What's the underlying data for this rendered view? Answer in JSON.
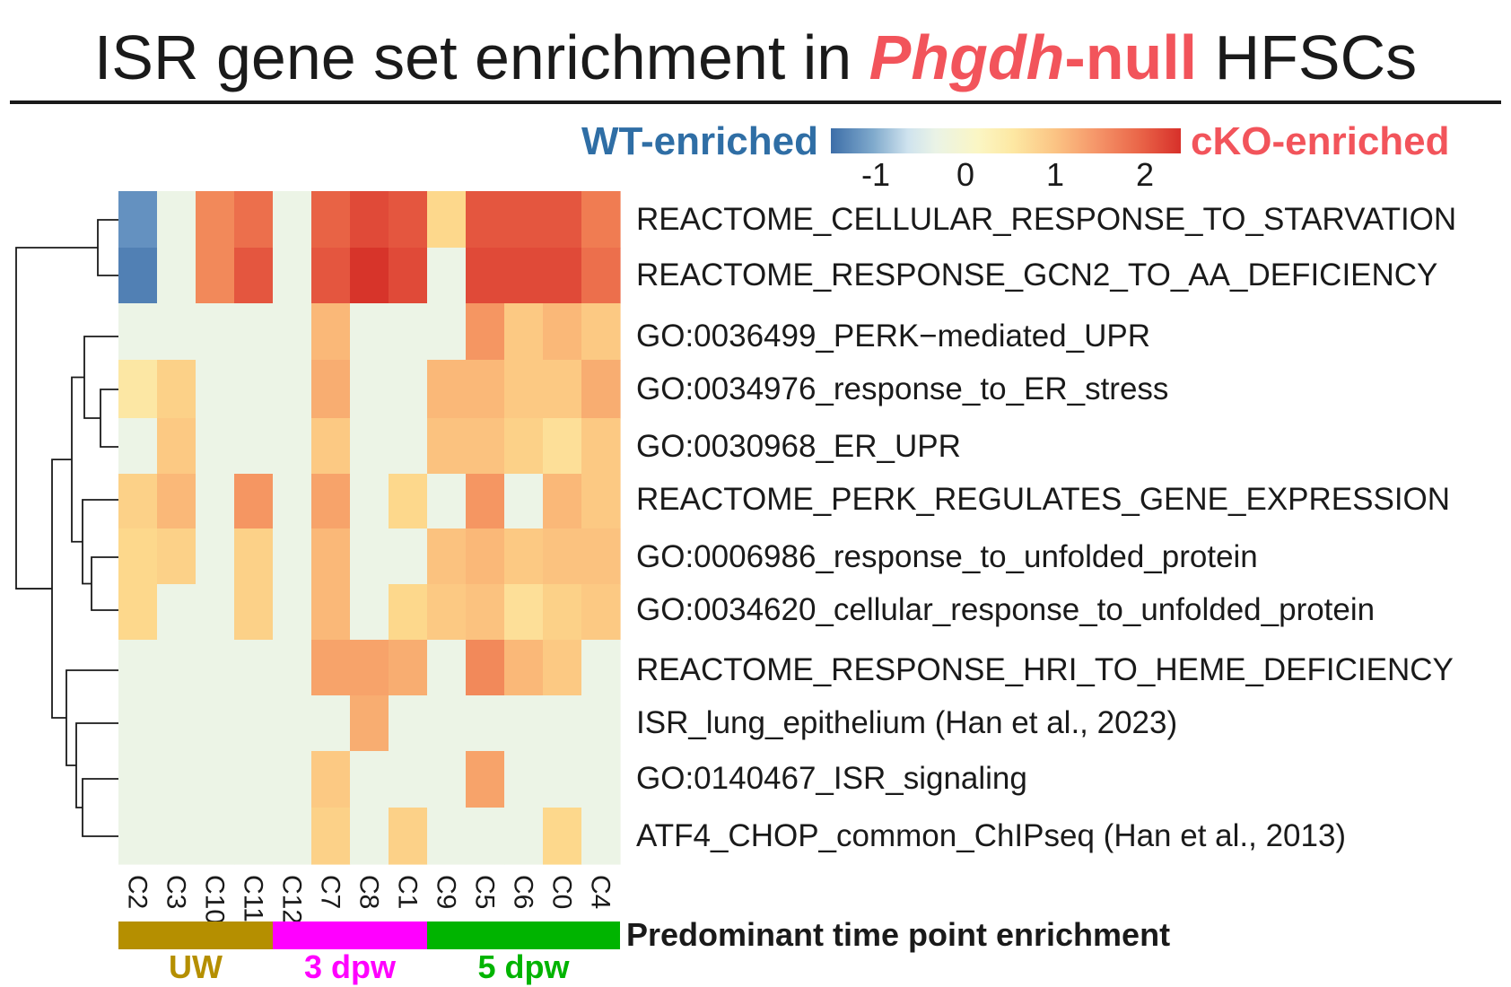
{
  "title": {
    "prefix": "ISR gene set enrichment in ",
    "highlight_italic": "Phgdh",
    "highlight_rest": "-null",
    "suffix": " HFSCs"
  },
  "legend": {
    "left_label": "WT-enriched",
    "right_label": "cKO-enriched",
    "left_color": "#2f6ea5",
    "right_color": "#f2545b",
    "ticks": [
      {
        "label": "-1",
        "value": -1
      },
      {
        "label": "0",
        "value": 0
      },
      {
        "label": "1",
        "value": 1
      },
      {
        "label": "2",
        "value": 2
      }
    ],
    "range": [
      -1.5,
      2.4
    ]
  },
  "chart_data": {
    "type": "heatmap",
    "title": "ISR gene set enrichment in Phgdh-null HFSCs",
    "columns": [
      "C2",
      "C3",
      "C10",
      "C11",
      "C12",
      "C7",
      "C8",
      "C1",
      "C9",
      "C5",
      "C6",
      "C0",
      "C4"
    ],
    "rows": [
      "REACTOME_CELLULAR_RESPONSE_TO_STARVATION",
      "REACTOME_RESPONSE_GCN2_TO_AA_DEFICIENCY",
      "GO:0036499_PERK−mediated_UPR",
      "GO:0034976_response_to_ER_stress",
      "GO:0030968_ER_UPR",
      "REACTOME_PERK_REGULATES_GENE_EXPRESSION",
      "GO:0006986_response_to_unfolded_protein",
      "GO:0034620_cellular_response_to_unfolded_protein",
      "REACTOME_RESPONSE_HRI_TO_HEME_DEFICIENCY",
      "ISR_lung_epithelium (Han et al., 2023)",
      "GO:0140467_ISR_signaling",
      "ATF4_CHOP_common_ChIPseq  (Han et al., 2013)"
    ],
    "values": [
      [
        -1.1,
        0,
        1.6,
        1.8,
        0,
        1.9,
        2.1,
        2.0,
        0.8,
        2.0,
        2.0,
        2.0,
        1.7
      ],
      [
        -1.3,
        0,
        1.6,
        2.0,
        0,
        2.0,
        2.3,
        2.1,
        0,
        2.1,
        2.1,
        2.1,
        1.8
      ],
      [
        0,
        0,
        0,
        0,
        0,
        1.2,
        0,
        0,
        0,
        1.5,
        1.0,
        1.2,
        1.0
      ],
      [
        0.6,
        0.9,
        0,
        0,
        0,
        1.3,
        0,
        0,
        1.2,
        1.2,
        1.0,
        1.0,
        1.3
      ],
      [
        0,
        1.0,
        0,
        0,
        0,
        1.0,
        0,
        0,
        1.1,
        1.1,
        0.9,
        0.7,
        1.0
      ],
      [
        0.9,
        1.2,
        0,
        1.5,
        0,
        1.4,
        0,
        0.8,
        0,
        1.5,
        0,
        1.2,
        1.0
      ],
      [
        0.8,
        0.9,
        0,
        0.9,
        0,
        1.2,
        0,
        0,
        1.1,
        1.2,
        1.0,
        1.1,
        1.1
      ],
      [
        0.8,
        0,
        0,
        0.9,
        0,
        1.2,
        0,
        0.8,
        1.0,
        1.1,
        0.7,
        0.9,
        1.0
      ],
      [
        0,
        0,
        0,
        0,
        0,
        1.4,
        1.4,
        1.3,
        0,
        1.6,
        1.2,
        1.0,
        0
      ],
      [
        0,
        0,
        0,
        0,
        0,
        0,
        1.3,
        0,
        0,
        0,
        0,
        0,
        0
      ],
      [
        0,
        0,
        0,
        0,
        0,
        1.0,
        0,
        0,
        0,
        1.4,
        0,
        0,
        0
      ],
      [
        0,
        0,
        0,
        0,
        0,
        0.9,
        0,
        0.9,
        0,
        0,
        0,
        0.8,
        0
      ]
    ],
    "value_range": [
      -1.5,
      2.4
    ],
    "row_dendrogram": true
  },
  "annotation": {
    "label": "Predominant time point enrichment",
    "groups": [
      {
        "label": "UW",
        "count": 4,
        "color": "#b58f00",
        "text_color": "#b58f00"
      },
      {
        "label": "3 dpw",
        "count": 4,
        "color": "#ff00ff",
        "text_color": "#ff00ff"
      },
      {
        "label": "5 dpw",
        "count": 5,
        "color": "#00b400",
        "text_color": "#00b400"
      }
    ]
  }
}
